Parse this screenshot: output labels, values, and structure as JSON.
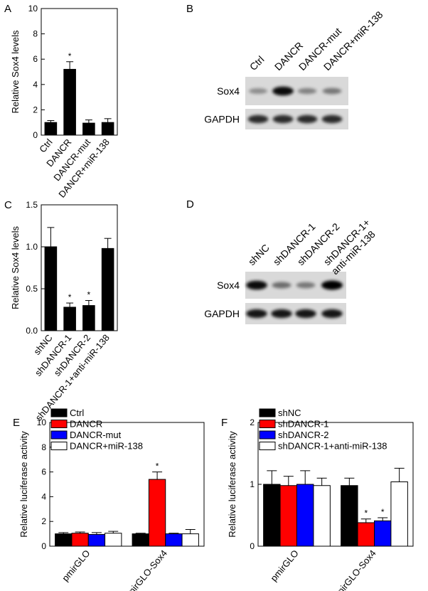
{
  "chart_data": [
    {
      "type": "bar",
      "panel": "A",
      "y_label": "Relative Sox4 levels",
      "categories": [
        "Ctrl",
        "DANCR",
        "DANCR-mut",
        "DANCR+miR-138"
      ],
      "values": [
        1.0,
        5.2,
        0.95,
        1.0
      ],
      "errors": [
        0.15,
        0.6,
        0.25,
        0.3
      ],
      "color": "#000000",
      "ylim": [
        0,
        10
      ],
      "yticks": [
        0,
        2,
        4,
        6,
        8,
        10
      ],
      "annotations": [
        {
          "x": "DANCR",
          "text": "*"
        }
      ]
    },
    {
      "type": "bar",
      "panel": "C",
      "y_label": "Relative Sox4 levels",
      "categories": [
        "shNC",
        "shDANCR-1",
        "shDANCR-2",
        "shDANCR-1+anti-miR-138"
      ],
      "values": [
        1.0,
        0.28,
        0.3,
        0.98
      ],
      "errors": [
        0.23,
        0.05,
        0.06,
        0.12
      ],
      "color": "#000000",
      "ylim": [
        0,
        1.5
      ],
      "yticks": [
        {
          "value": 0,
          "label": "0.0"
        },
        0.5,
        {
          "value": 1,
          "label": "1.0"
        },
        1.5
      ],
      "annotations": [
        {
          "x": "shDANCR-1",
          "text": "*"
        },
        {
          "x": "shDANCR-2",
          "text": "*"
        }
      ]
    },
    {
      "type": "grouped_bar",
      "panel": "E",
      "y_label": "Relative luciferase activity",
      "categories": [
        "pmirGLO",
        "pmirGLO-Sox4"
      ],
      "series": [
        {
          "name": "Ctrl",
          "color": "#000000",
          "values": [
            1.0,
            1.0
          ],
          "errors": [
            0.1,
            0.05
          ]
        },
        {
          "name": "DANCR",
          "color": "#ff0000",
          "values": [
            1.05,
            5.4
          ],
          "errors": [
            0.1,
            0.6
          ]
        },
        {
          "name": "DANCR-mut",
          "color": "#0000ff",
          "values": [
            0.95,
            1.0
          ],
          "errors": [
            0.15,
            0.05
          ]
        },
        {
          "name": "DANCR+miR-138",
          "color": "#ffffff",
          "values": [
            1.05,
            1.0
          ],
          "errors": [
            0.15,
            0.35
          ]
        }
      ],
      "ylim": [
        0,
        10
      ],
      "yticks": [
        0,
        2,
        4,
        6,
        8,
        10
      ],
      "legend": "top-left",
      "annotations": [
        {
          "x": "pmirGLO-Sox4",
          "series": "DANCR",
          "text": "*"
        }
      ]
    },
    {
      "type": "grouped_bar",
      "panel": "F",
      "y_label": "Relative luciferase activity",
      "categories": [
        "pmirGLO",
        "pmirGLO-Sox4"
      ],
      "series": [
        {
          "name": "shNC",
          "color": "#000000",
          "values": [
            1.0,
            0.98
          ],
          "errors": [
            0.22,
            0.12
          ]
        },
        {
          "name": "shDANCR-1",
          "color": "#ff0000",
          "values": [
            0.98,
            0.38
          ],
          "errors": [
            0.15,
            0.06
          ]
        },
        {
          "name": "shDANCR-2",
          "color": "#0000ff",
          "values": [
            1.0,
            0.41
          ],
          "errors": [
            0.22,
            0.05
          ]
        },
        {
          "name": "shDANCR-1+anti-miR-138",
          "color": "#ffffff",
          "values": [
            0.98,
            1.04
          ],
          "errors": [
            0.12,
            0.22
          ]
        }
      ],
      "ylim": [
        0,
        2
      ],
      "yticks": [
        0,
        1,
        2
      ],
      "legend": "top-left",
      "annotations": [
        {
          "x": "pmirGLO-Sox4",
          "series": "shDANCR-1",
          "text": "*"
        },
        {
          "x": "pmirGLO-Sox4",
          "series": "shDANCR-2",
          "text": "*"
        }
      ]
    }
  ],
  "blots": [
    {
      "panel": "B",
      "lanes": [
        [
          "Ctrl"
        ],
        [
          "DANCR"
        ],
        [
          "DANCR-mut"
        ],
        [
          "DANCR+miR-138"
        ]
      ],
      "rows": [
        "Sox4",
        "GAPDH"
      ]
    },
    {
      "panel": "D",
      "lanes": [
        [
          "shNC"
        ],
        [
          "shDANCR-1"
        ],
        [
          "shDANCR-2"
        ],
        [
          "shDANCR-1+",
          "anti-miR-138"
        ]
      ],
      "rows": [
        "Sox4",
        "GAPDH"
      ]
    }
  ]
}
